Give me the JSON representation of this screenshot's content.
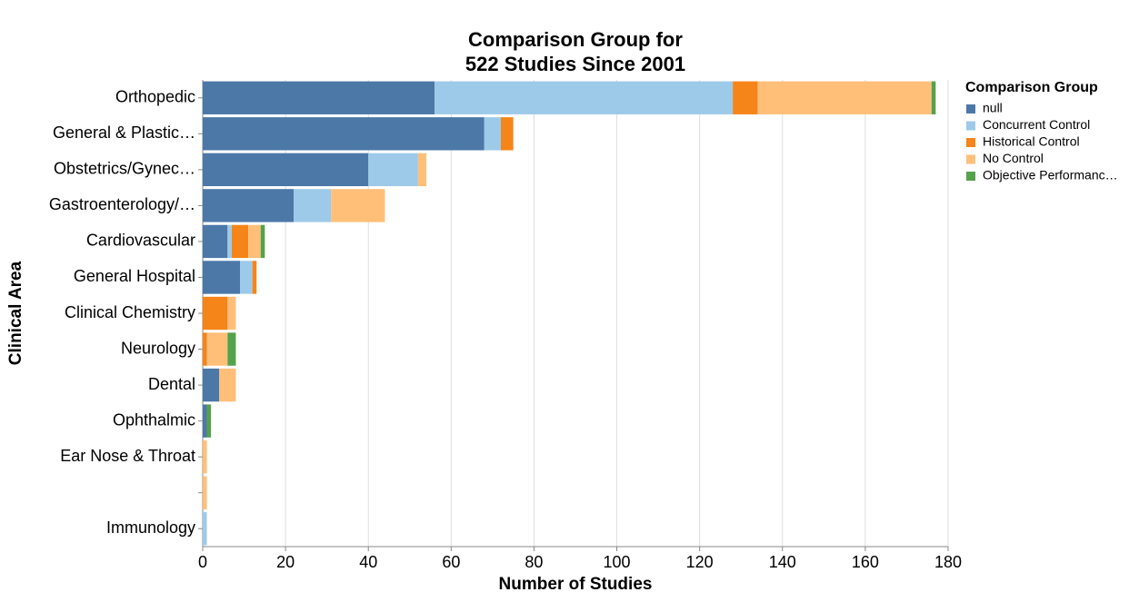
{
  "chart_data": {
    "type": "stacked-bar-horizontal",
    "title": [
      "Comparison Group for",
      "522 Studies Since 2001"
    ],
    "x_label": "Number of Studies",
    "y_label": "Clinical Area",
    "legend_title": "Comparison Group",
    "legend_position": "right",
    "grid": true,
    "categories": [
      "Orthopedic",
      "General & Plastic…",
      "Obstetrics/Gynec…",
      "Gastroenterology/…",
      "Cardiovascular",
      "General Hospital",
      "Clinical Chemistry",
      "Neurology",
      "Dental",
      "Ophthalmic",
      "Ear Nose & Throat",
      null,
      "Immunology"
    ],
    "series": [
      {
        "name": "null",
        "color": "#4c78a8",
        "values": [
          56,
          68,
          40,
          22,
          6,
          9,
          0,
          0,
          4,
          1,
          0,
          0,
          0
        ]
      },
      {
        "name": "Concurrent Control",
        "color": "#9ecae9",
        "values": [
          72,
          4,
          12,
          9,
          1,
          3,
          0,
          0,
          0,
          0,
          0,
          0,
          1
        ]
      },
      {
        "name": "Historical Control",
        "color": "#f58518",
        "values": [
          6,
          3,
          0,
          0,
          4,
          1,
          6,
          1,
          0,
          0,
          0,
          0,
          0
        ]
      },
      {
        "name": "No Control",
        "color": "#ffbf79",
        "values": [
          42,
          0,
          2,
          13,
          3,
          0,
          2,
          5,
          4,
          0,
          1,
          1,
          0
        ]
      },
      {
        "name": "Objective Performanc…",
        "color": "#54a24b",
        "values": [
          1,
          0,
          0,
          0,
          1,
          0,
          0,
          2,
          0,
          1,
          0,
          0,
          0
        ]
      }
    ],
    "xlim": [
      0,
      180
    ],
    "xticks": [
      0,
      20,
      40,
      60,
      80,
      100,
      120,
      140,
      160,
      180
    ]
  }
}
